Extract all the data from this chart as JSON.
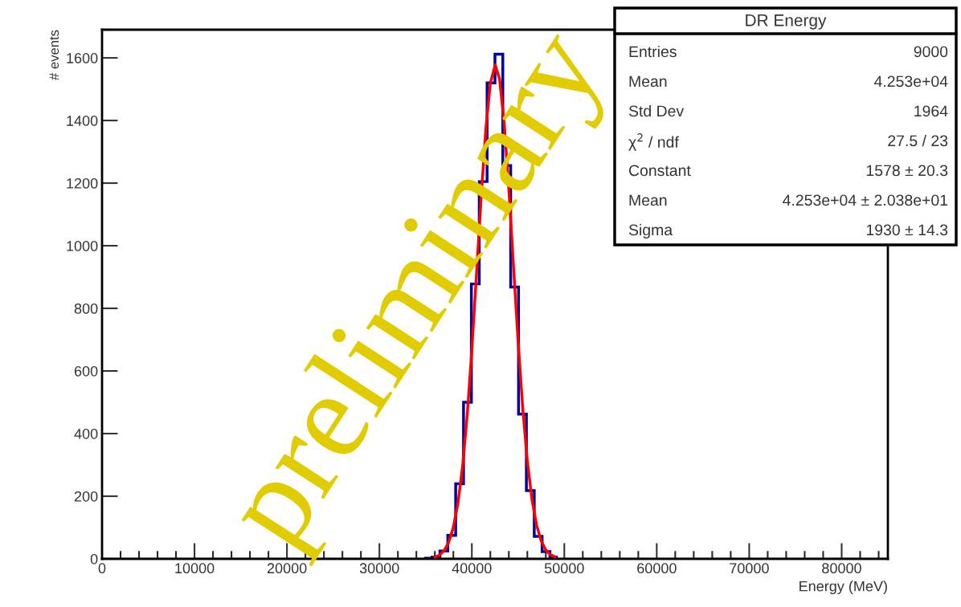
{
  "chart_data": {
    "type": "histogram",
    "xlabel": "Energy (MeV)",
    "ylabel": "# events",
    "title": "DR Energy",
    "bins": [
      34850,
      35700,
      36550,
      37400,
      38250,
      39100,
      39950,
      40800,
      41650,
      42500,
      43350,
      44200,
      45050,
      45900,
      46750,
      47600,
      48450,
      49300
    ],
    "series": [
      {
        "color": "#00009c",
        "values": [
          2,
          5,
          25,
          75,
          240,
          500,
          878,
          1205,
          1520,
          1612,
          1256,
          868,
          462,
          218,
          72,
          23,
          5
        ]
      },
      {
        "type": "line",
        "color": "#ff0000",
        "x": [
          36000,
          36500,
          37000,
          37500,
          38000,
          38500,
          39000,
          39500,
          40000,
          40500,
          41000,
          41500,
          42000,
          42530,
          43000,
          43500,
          44000,
          44500,
          45000,
          45500,
          46000,
          46500,
          47000,
          47500,
          48000,
          48500,
          49000
        ],
        "values": [
          5,
          12,
          26,
          53,
          101,
          178,
          296,
          460,
          668,
          908,
          1152,
          1369,
          1519,
          1578,
          1532,
          1391,
          1181,
          937,
          696,
          483,
          313,
          190,
          108,
          57,
          28,
          13,
          6
        ]
      }
    ],
    "xlim": [
      0,
      85000
    ],
    "ylim": [
      0,
      1690
    ],
    "xticks": [
      0,
      10000,
      20000,
      30000,
      40000,
      50000,
      60000,
      70000,
      80000
    ],
    "yticks": [
      0,
      200,
      400,
      600,
      800,
      1000,
      1200,
      1400,
      1600
    ],
    "grid": false,
    "annotations": [
      "preliminary",
      "Entries",
      "9000",
      "Mean",
      "4.253e+04",
      "Std Dev",
      "1964",
      "χ$^{2}$ / ndf",
      "27.5 / 23",
      "Constant",
      "1578 ± 20.3",
      "Mean",
      "4.253e+04 ± 2.038e+01",
      "Sigma",
      "1930 ± 14.3"
    ]
  }
}
